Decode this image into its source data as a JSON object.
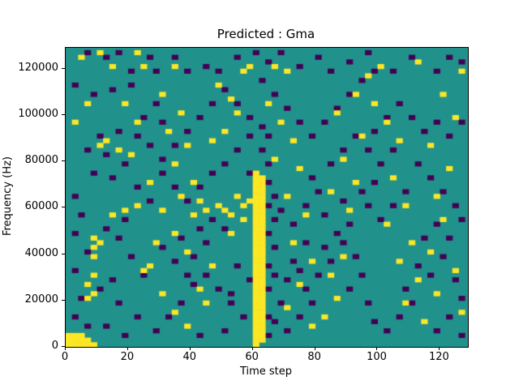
{
  "chart_data": {
    "type": "heatmap",
    "title": "Predicted : Gma",
    "xlabel": "Time step",
    "ylabel": "Frequency (Hz)",
    "xlim": [
      0,
      129
    ],
    "ylim": [
      0,
      129000
    ],
    "xticks": [
      0,
      20,
      40,
      60,
      80,
      100,
      120
    ],
    "yticks": [
      0,
      20000,
      40000,
      60000,
      80000,
      100000,
      120000
    ],
    "grid": false,
    "legend": "none",
    "colors": {
      "background": "#21918c",
      "high": "#fde725",
      "low": "#440154"
    },
    "cell_size": {
      "x": 2,
      "y": 2000
    },
    "bands": [
      {
        "t": 60,
        "f_min": 4000,
        "f_max": 74000,
        "value": "high"
      },
      {
        "t": 62,
        "f_min": 4000,
        "f_max": 72000,
        "value": "high"
      }
    ],
    "cells": {
      "high": [
        [
          0,
          0
        ],
        [
          2,
          0
        ],
        [
          4,
          0
        ],
        [
          6,
          0
        ],
        [
          8,
          0
        ],
        [
          0,
          2000
        ],
        [
          2,
          2000
        ],
        [
          4,
          2000
        ],
        [
          6,
          2000
        ],
        [
          0,
          4000
        ],
        [
          2,
          4000
        ],
        [
          4,
          4000
        ],
        [
          60,
          0
        ],
        [
          60,
          2000
        ],
        [
          62,
          2000
        ],
        [
          8,
          38000
        ],
        [
          8,
          42000
        ],
        [
          8,
          46000
        ],
        [
          10,
          44000
        ],
        [
          8,
          30000
        ],
        [
          6,
          26000
        ],
        [
          8,
          22000
        ],
        [
          6,
          20000
        ],
        [
          4,
          124000
        ],
        [
          10,
          126000
        ],
        [
          14,
          120000
        ],
        [
          22,
          126000
        ],
        [
          24,
          120000
        ],
        [
          18,
          104000
        ],
        [
          6,
          104000
        ],
        [
          2,
          96000
        ],
        [
          22,
          96000
        ],
        [
          12,
          88000
        ],
        [
          10,
          86000
        ],
        [
          16,
          84000
        ],
        [
          20,
          82000
        ],
        [
          26,
          70000
        ],
        [
          22,
          60000
        ],
        [
          18,
          58000
        ],
        [
          14,
          56000
        ],
        [
          28,
          44000
        ],
        [
          26,
          34000
        ],
        [
          24,
          32000
        ],
        [
          30,
          22000
        ],
        [
          34,
          14000
        ],
        [
          38,
          8000
        ],
        [
          44,
          18000
        ],
        [
          42,
          24000
        ],
        [
          46,
          34000
        ],
        [
          40,
          56000
        ],
        [
          44,
          58000
        ],
        [
          48,
          60000
        ],
        [
          42,
          62000
        ],
        [
          46,
          88000
        ],
        [
          50,
          92000
        ],
        [
          54,
          100000
        ],
        [
          52,
          106000
        ],
        [
          48,
          112000
        ],
        [
          56,
          118000
        ],
        [
          58,
          120000
        ],
        [
          66,
          120000
        ],
        [
          70,
          118000
        ],
        [
          64,
          104000
        ],
        [
          68,
          96000
        ],
        [
          72,
          88000
        ],
        [
          66,
          80000
        ],
        [
          74,
          76000
        ],
        [
          70,
          64000
        ],
        [
          76,
          56000
        ],
        [
          72,
          44000
        ],
        [
          78,
          36000
        ],
        [
          74,
          26000
        ],
        [
          70,
          16000
        ],
        [
          78,
          8000
        ],
        [
          82,
          12000
        ],
        [
          86,
          20000
        ],
        [
          84,
          30000
        ],
        [
          88,
          38000
        ],
        [
          90,
          58000
        ],
        [
          84,
          66000
        ],
        [
          92,
          70000
        ],
        [
          88,
          80000
        ],
        [
          94,
          90000
        ],
        [
          86,
          100000
        ],
        [
          92,
          108000
        ],
        [
          96,
          116000
        ],
        [
          100,
          120000
        ],
        [
          98,
          104000
        ],
        [
          102,
          96000
        ],
        [
          106,
          88000
        ],
        [
          104,
          72000
        ],
        [
          108,
          60000
        ],
        [
          102,
          52000
        ],
        [
          110,
          44000
        ],
        [
          106,
          36000
        ],
        [
          112,
          28000
        ],
        [
          108,
          18000
        ],
        [
          114,
          10000
        ],
        [
          118,
          22000
        ],
        [
          116,
          40000
        ],
        [
          120,
          54000
        ],
        [
          118,
          64000
        ],
        [
          122,
          76000
        ],
        [
          116,
          86000
        ],
        [
          124,
          98000
        ],
        [
          120,
          108000
        ],
        [
          126,
          118000
        ],
        [
          124,
          32000
        ],
        [
          126,
          14000
        ],
        [
          112,
          122000
        ],
        [
          34,
          120000
        ],
        [
          30,
          108000
        ],
        [
          36,
          100000
        ],
        [
          32,
          92000
        ],
        [
          38,
          86000
        ],
        [
          34,
          78000
        ],
        [
          40,
          70000
        ],
        [
          36,
          64000
        ],
        [
          30,
          58000
        ],
        [
          34,
          48000
        ],
        [
          38,
          40000
        ],
        [
          52,
          56000
        ],
        [
          56,
          60000
        ],
        [
          54,
          64000
        ],
        [
          50,
          58000
        ],
        [
          58,
          62000
        ],
        [
          56,
          54000
        ],
        [
          52,
          48000
        ]
      ],
      "low": [
        [
          6,
          126000
        ],
        [
          12,
          124000
        ],
        [
          16,
          126000
        ],
        [
          20,
          118000
        ],
        [
          26,
          124000
        ],
        [
          28,
          118000
        ],
        [
          34,
          124000
        ],
        [
          38,
          118000
        ],
        [
          44,
          120000
        ],
        [
          48,
          118000
        ],
        [
          54,
          124000
        ],
        [
          60,
          126000
        ],
        [
          64,
          122000
        ],
        [
          68,
          126000
        ],
        [
          74,
          120000
        ],
        [
          80,
          124000
        ],
        [
          84,
          118000
        ],
        [
          90,
          122000
        ],
        [
          96,
          126000
        ],
        [
          104,
          118000
        ],
        [
          110,
          124000
        ],
        [
          118,
          118000
        ],
        [
          122,
          124000
        ],
        [
          126,
          122000
        ],
        [
          2,
          112000
        ],
        [
          8,
          108000
        ],
        [
          14,
          110000
        ],
        [
          20,
          112000
        ],
        [
          28,
          104000
        ],
        [
          24,
          98000
        ],
        [
          30,
          96000
        ],
        [
          16,
          92000
        ],
        [
          10,
          90000
        ],
        [
          6,
          84000
        ],
        [
          12,
          82000
        ],
        [
          18,
          78000
        ],
        [
          8,
          74000
        ],
        [
          14,
          72000
        ],
        [
          22,
          68000
        ],
        [
          26,
          62000
        ],
        [
          18,
          54000
        ],
        [
          12,
          50000
        ],
        [
          16,
          46000
        ],
        [
          20,
          38000
        ],
        [
          24,
          30000
        ],
        [
          14,
          28000
        ],
        [
          10,
          24000
        ],
        [
          16,
          18000
        ],
        [
          22,
          12000
        ],
        [
          12,
          8000
        ],
        [
          18,
          4000
        ],
        [
          28,
          6000
        ],
        [
          32,
          12000
        ],
        [
          36,
          18000
        ],
        [
          40,
          26000
        ],
        [
          44,
          30000
        ],
        [
          48,
          24000
        ],
        [
          52,
          18000
        ],
        [
          56,
          12000
        ],
        [
          50,
          6000
        ],
        [
          42,
          4000
        ],
        [
          38,
          30000
        ],
        [
          34,
          36000
        ],
        [
          30,
          42000
        ],
        [
          36,
          46000
        ],
        [
          42,
          50000
        ],
        [
          46,
          54000
        ],
        [
          50,
          50000
        ],
        [
          44,
          44000
        ],
        [
          40,
          38000
        ],
        [
          54,
          34000
        ],
        [
          58,
          28000
        ],
        [
          52,
          22000
        ],
        [
          64,
          34000
        ],
        [
          66,
          42000
        ],
        [
          64,
          48000
        ],
        [
          66,
          54000
        ],
        [
          64,
          60000
        ],
        [
          66,
          64000
        ],
        [
          68,
          58000
        ],
        [
          66,
          30000
        ],
        [
          64,
          24000
        ],
        [
          68,
          18000
        ],
        [
          66,
          10000
        ],
        [
          70,
          6000
        ],
        [
          74,
          12000
        ],
        [
          78,
          18000
        ],
        [
          76,
          24000
        ],
        [
          80,
          30000
        ],
        [
          84,
          36000
        ],
        [
          82,
          42000
        ],
        [
          86,
          48000
        ],
        [
          90,
          52000
        ],
        [
          88,
          44000
        ],
        [
          92,
          38000
        ],
        [
          94,
          30000
        ],
        [
          90,
          24000
        ],
        [
          96,
          18000
        ],
        [
          98,
          10000
        ],
        [
          102,
          6000
        ],
        [
          106,
          12000
        ],
        [
          110,
          18000
        ],
        [
          108,
          24000
        ],
        [
          112,
          34000
        ],
        [
          116,
          30000
        ],
        [
          114,
          46000
        ],
        [
          118,
          52000
        ],
        [
          122,
          46000
        ],
        [
          120,
          38000
        ],
        [
          124,
          28000
        ],
        [
          126,
          20000
        ],
        [
          122,
          12000
        ],
        [
          118,
          6000
        ],
        [
          126,
          4000
        ],
        [
          72,
          52000
        ],
        [
          76,
          60000
        ],
        [
          80,
          66000
        ],
        [
          78,
          72000
        ],
        [
          84,
          78000
        ],
        [
          88,
          84000
        ],
        [
          92,
          90000
        ],
        [
          96,
          84000
        ],
        [
          100,
          78000
        ],
        [
          104,
          84000
        ],
        [
          98,
          92000
        ],
        [
          102,
          98000
        ],
        [
          106,
          104000
        ],
        [
          110,
          98000
        ],
        [
          114,
          92000
        ],
        [
          118,
          96000
        ],
        [
          122,
          90000
        ],
        [
          126,
          96000
        ],
        [
          112,
          78000
        ],
        [
          116,
          72000
        ],
        [
          120,
          66000
        ],
        [
          124,
          60000
        ],
        [
          126,
          54000
        ],
        [
          108,
          66000
        ],
        [
          104,
          60000
        ],
        [
          100,
          54000
        ],
        [
          96,
          60000
        ],
        [
          94,
          66000
        ],
        [
          98,
          70000
        ],
        [
          88,
          62000
        ],
        [
          82,
          56000
        ],
        [
          76,
          44000
        ],
        [
          72,
          36000
        ],
        [
          70,
          28000
        ],
        [
          74,
          32000
        ],
        [
          30,
          74000
        ],
        [
          34,
          68000
        ],
        [
          38,
          62000
        ],
        [
          42,
          68000
        ],
        [
          46,
          74000
        ],
        [
          50,
          78000
        ],
        [
          54,
          84000
        ],
        [
          58,
          90000
        ],
        [
          62,
          94000
        ],
        [
          58,
          98000
        ],
        [
          54,
          104000
        ],
        [
          50,
          110000
        ],
        [
          46,
          104000
        ],
        [
          42,
          98000
        ],
        [
          38,
          92000
        ],
        [
          34,
          86000
        ],
        [
          30,
          80000
        ],
        [
          26,
          86000
        ],
        [
          22,
          90000
        ],
        [
          2,
          64000
        ],
        [
          4,
          56000
        ],
        [
          2,
          48000
        ],
        [
          6,
          40000
        ],
        [
          2,
          32000
        ],
        [
          4,
          20000
        ],
        [
          2,
          12000
        ],
        [
          6,
          8000
        ],
        [
          64,
          78000
        ],
        [
          62,
          84000
        ],
        [
          64,
          90000
        ],
        [
          62,
          114000
        ],
        [
          66,
          108000
        ],
        [
          70,
          102000
        ],
        [
          74,
          96000
        ],
        [
          78,
          90000
        ],
        [
          82,
          96000
        ],
        [
          86,
          102000
        ],
        [
          90,
          108000
        ],
        [
          94,
          114000
        ],
        [
          98,
          118000
        ],
        [
          58,
          74000
        ],
        [
          64,
          70000
        ],
        [
          64,
          4000
        ],
        [
          64,
          12000
        ]
      ]
    }
  }
}
